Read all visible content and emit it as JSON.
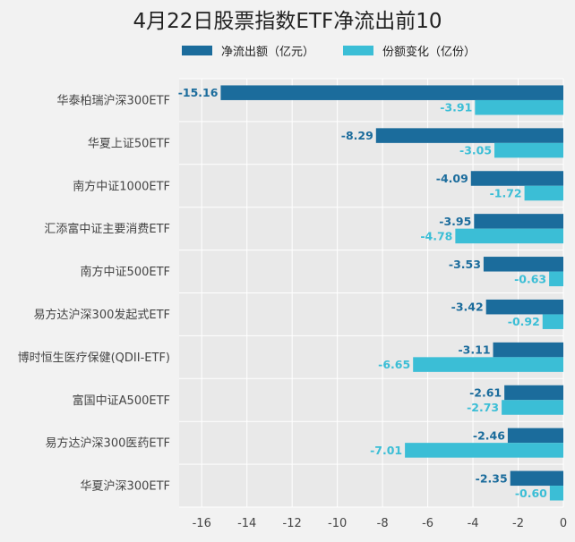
{
  "chart_data": {
    "type": "bar",
    "orientation": "horizontal",
    "title": "4月22日股票指数ETF净流出前10",
    "categories": [
      "华泰柏瑞沪深300ETF",
      "华夏上证50ETF",
      "南方中证1000ETF",
      "汇添富中证主要消费ETF",
      "南方中证500ETF",
      "易方达沪深300发起式ETF",
      "博时恒生医疗保健(QDII-ETF)",
      "富国中证A500ETF",
      "易方达沪深300医药ETF",
      "华夏沪深300ETF"
    ],
    "series": [
      {
        "name": "净流出额（亿元）",
        "color": "#1b6c9c",
        "values": [
          -15.16,
          -8.29,
          -4.09,
          -3.95,
          -3.53,
          -3.42,
          -3.11,
          -2.61,
          -2.46,
          -2.35
        ],
        "labels": [
          "-15.16",
          "-8.29",
          "-4.09",
          "-3.95",
          "-3.53",
          "-3.42",
          "-3.11",
          "-2.61",
          "-2.46",
          "-2.35"
        ]
      },
      {
        "name": "份额变化（亿份）",
        "color": "#3bbed6",
        "values": [
          -3.91,
          -3.05,
          -1.72,
          -4.78,
          -0.63,
          -0.92,
          -6.65,
          -2.73,
          -7.01,
          -0.6
        ],
        "labels": [
          "-3.91",
          "-3.05",
          "-1.72",
          "-4.78",
          "-0.63",
          "-0.92",
          "-6.65",
          "-2.73",
          "-7.01",
          "-0.60"
        ]
      }
    ],
    "xlim": [
      -17,
      0
    ],
    "xticks": [
      -16,
      -14,
      -12,
      -10,
      -8,
      -6,
      -4,
      -2,
      0
    ],
    "grid": true,
    "legend_position": "top"
  }
}
